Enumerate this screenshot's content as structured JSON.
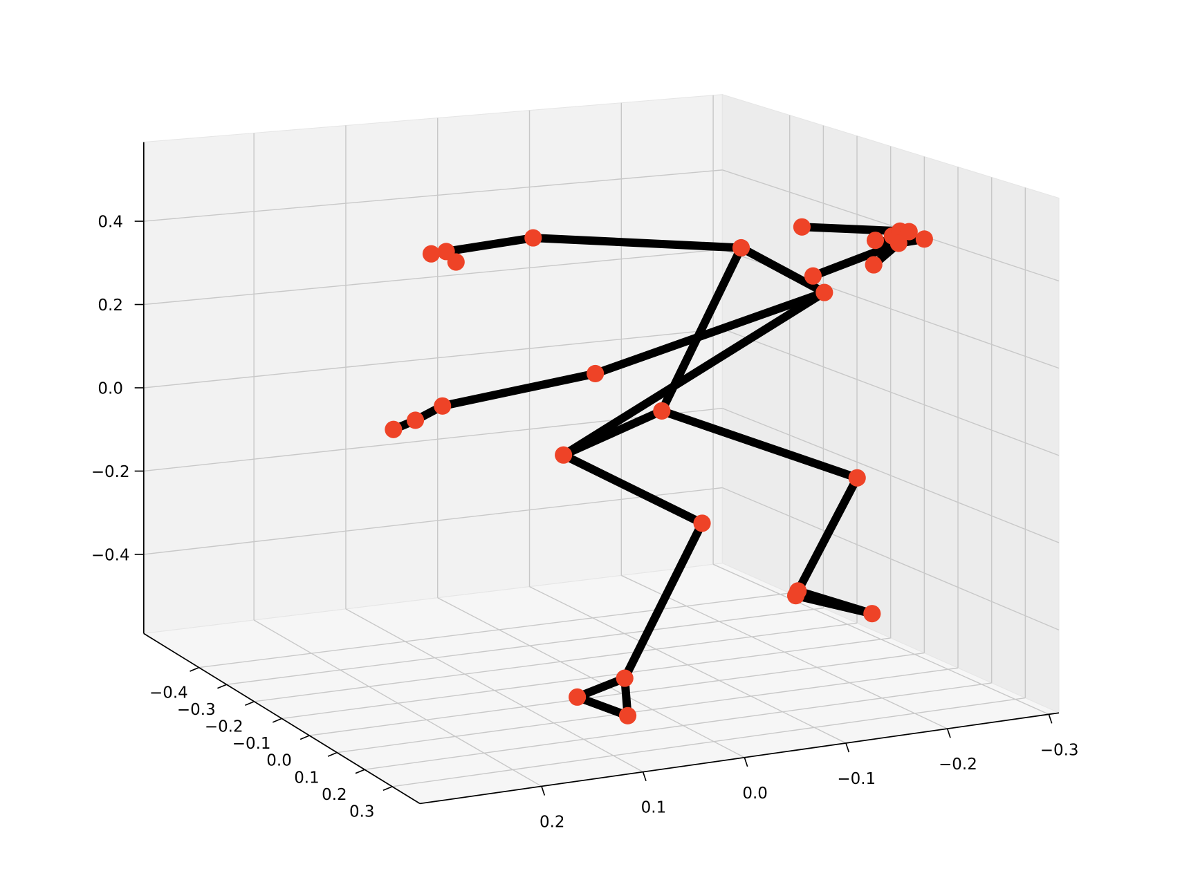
{
  "chart_data": {
    "type": "scatter3d",
    "x": [
      0.195,
      0.228,
      0.281,
      0.304,
      0.332,
      0.3,
      0.379,
      0.223,
      0.201,
      0.071,
      0.036,
      -0.074,
      0.048,
      -0.004,
      0.082,
      0.133,
      0.035,
      -0.059,
      -0.135,
      -0.053,
      0.027,
      0.172,
      0.383,
      0.376,
      0.218,
      0.076,
      0.231,
      0.073,
      0.241
    ],
    "y": [
      -0.121,
      -0.184,
      -0.184,
      -0.184,
      -0.184,
      -0.184,
      -0.184,
      -0.184,
      -0.058,
      -0.184,
      -0.184,
      0.068,
      0.194,
      0.194,
      0.194,
      0.068,
      0.194,
      0.194,
      0.194,
      -0.058,
      0.068,
      -0.184,
      -0.058,
      -0.058,
      -0.184,
      -0.058,
      0.068,
      0.068,
      0.068
    ],
    "z": [
      0.523,
      0.484,
      0.508,
      0.525,
      0.531,
      0.496,
      0.526,
      0.426,
      0.493,
      0.32,
      0.349,
      0.47,
      0.505,
      0.484,
      0.491,
      0.217,
      0.145,
      0.081,
      0.034,
      0.038,
      -0.005,
      -0.083,
      -0.237,
      -0.25,
      -0.383,
      -0.183,
      -0.449,
      -0.55,
      -0.531
    ],
    "connections": [
      [
        0,
        3
      ],
      [
        1,
        5
      ],
      [
        2,
        5
      ],
      [
        3,
        5
      ],
      [
        4,
        5
      ],
      [
        6,
        5
      ],
      [
        7,
        5
      ],
      [
        5,
        10
      ],
      [
        8,
        11
      ],
      [
        11,
        12
      ],
      [
        12,
        13
      ],
      [
        12,
        14
      ],
      [
        8,
        9
      ],
      [
        8,
        19
      ],
      [
        9,
        20
      ],
      [
        9,
        15
      ],
      [
        15,
        16
      ],
      [
        16,
        17
      ],
      [
        17,
        18
      ],
      [
        19,
        20
      ],
      [
        19,
        21
      ],
      [
        21,
        22
      ],
      [
        22,
        24
      ],
      [
        23,
        24
      ],
      [
        22,
        23
      ],
      [
        20,
        25
      ],
      [
        25,
        26
      ],
      [
        26,
        27
      ],
      [
        27,
        28
      ],
      [
        28,
        26
      ]
    ],
    "point_color": "#ee4327",
    "line_color": "#000000",
    "xlim": [
      -0.6,
      0.4
    ],
    "ylim": [
      -0.31,
      0.32
    ],
    "zlim": [
      -0.59,
      0.59
    ],
    "xticks": [
      {
        "value": -0.4,
        "label": "−0.4"
      },
      {
        "value": -0.3,
        "label": "−0.3"
      },
      {
        "value": -0.2,
        "label": "−0.2"
      },
      {
        "value": -0.1,
        "label": "−0.1"
      },
      {
        "value": 0,
        "label": "0.0"
      },
      0.1,
      0.2,
      0.3
    ],
    "yticks": [
      {
        "value": -0.3,
        "label": "−0.3"
      },
      {
        "value": -0.2,
        "label": "−0.2"
      },
      {
        "value": -0.1,
        "label": "−0.1"
      },
      {
        "value": 0,
        "label": "0.0"
      },
      0.1,
      0.2
    ],
    "zticks": [
      {
        "value": -0.4,
        "label": "−0.4"
      },
      {
        "value": -0.2,
        "label": "−0.2"
      },
      {
        "value": 0,
        "label": "0.0"
      },
      0.2,
      0.4
    ],
    "grid": true
  }
}
